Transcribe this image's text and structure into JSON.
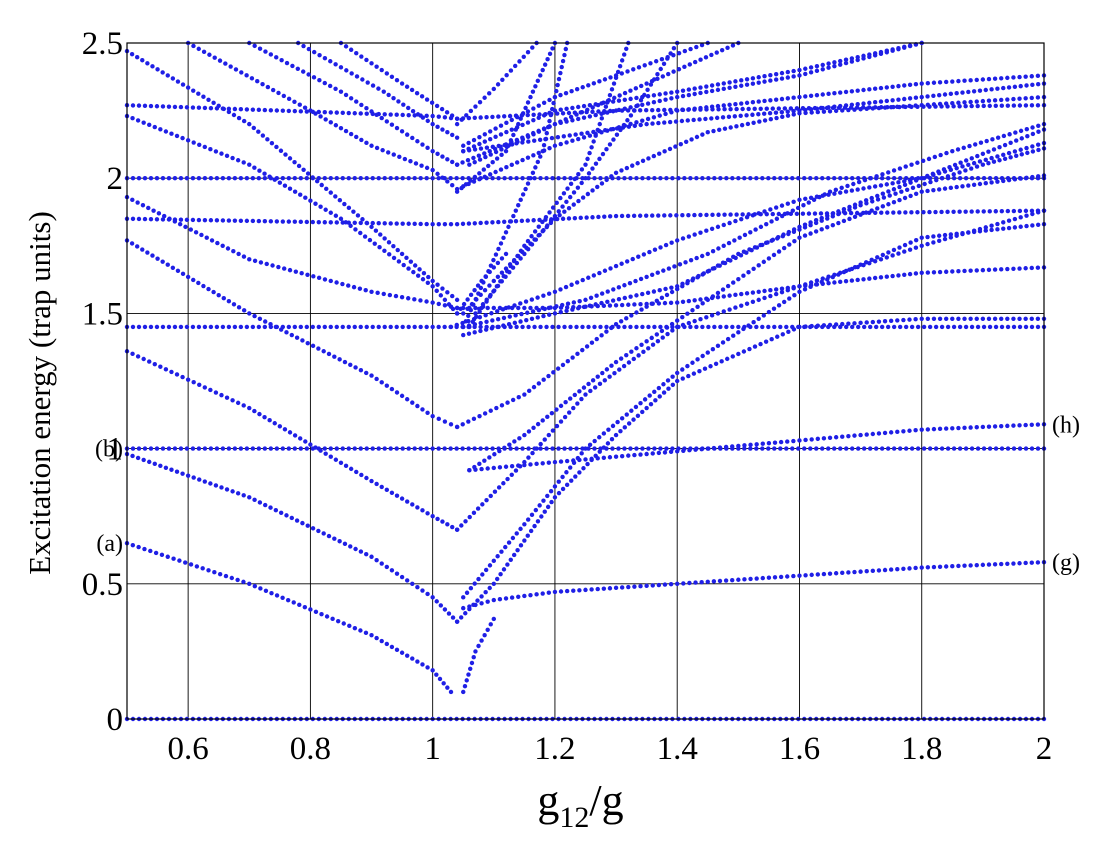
{
  "chart_data": {
    "type": "scatter",
    "xlabel": {
      "main": "g",
      "sub": "12",
      "rest": "/g"
    },
    "ylabel": "Excitation energy (trap units)",
    "xlim": [
      0.5,
      2.0
    ],
    "ylim": [
      0,
      2.5
    ],
    "x_ticks": [
      0.6,
      0.8,
      1,
      1.2,
      1.4,
      1.6,
      1.8,
      2
    ],
    "x_tick_labels": [
      "0.6",
      "0.8",
      "1",
      "1.2",
      "1.4",
      "1.6",
      "1.8",
      "2"
    ],
    "y_ticks": [
      0,
      0.5,
      1,
      1.5,
      2,
      2.5
    ],
    "y_tick_labels": [
      "0",
      "0.5",
      "1",
      "1.5",
      "2",
      "2.5"
    ],
    "grid": true,
    "marker_color": "#1f1fe6",
    "annotations": [
      {
        "text": "(a)",
        "x": 0.5,
        "y": 0.65,
        "side": "left"
      },
      {
        "text": "(b)",
        "x": 0.5,
        "y": 1.0,
        "side": "left"
      },
      {
        "text": "(g)",
        "x": 2.0,
        "y": 0.58,
        "side": "right"
      },
      {
        "text": "(h)",
        "x": 2.0,
        "y": 1.09,
        "side": "right"
      }
    ],
    "series": [
      {
        "points": [
          [
            0.5,
            0.0
          ],
          [
            2.0,
            0.0
          ]
        ]
      },
      {
        "points": [
          [
            0.5,
            1.0
          ],
          [
            2.0,
            1.0
          ]
        ]
      },
      {
        "points": [
          [
            0.5,
            1.45
          ],
          [
            2.0,
            1.45
          ]
        ]
      },
      {
        "points": [
          [
            0.5,
            2.0
          ],
          [
            2.0,
            2.0
          ]
        ]
      },
      {
        "points": [
          [
            0.5,
            1.85
          ],
          [
            1.0,
            1.83
          ],
          [
            1.04,
            1.83
          ],
          [
            1.3,
            1.86
          ],
          [
            2.0,
            1.88
          ]
        ]
      },
      {
        "points": [
          [
            0.5,
            2.27
          ],
          [
            1.0,
            2.23
          ],
          [
            1.04,
            2.22
          ],
          [
            1.3,
            2.25
          ],
          [
            2.0,
            2.27
          ]
        ]
      },
      {
        "points": [
          [
            0.5,
            0.65
          ],
          [
            0.7,
            0.5
          ],
          [
            0.9,
            0.31
          ],
          [
            1.0,
            0.18
          ],
          [
            1.03,
            0.1
          ]
        ]
      },
      {
        "points": [
          [
            1.05,
            0.1
          ],
          [
            1.07,
            0.25
          ],
          [
            1.1,
            0.37
          ]
        ]
      },
      {
        "points": [
          [
            1.05,
            0.41
          ],
          [
            1.1,
            0.44
          ],
          [
            1.2,
            0.47
          ],
          [
            1.4,
            0.5
          ],
          [
            1.6,
            0.53
          ],
          [
            1.8,
            0.56
          ],
          [
            2.0,
            0.58
          ]
        ]
      },
      {
        "points": [
          [
            0.5,
            0.98
          ],
          [
            0.7,
            0.82
          ],
          [
            0.9,
            0.6
          ],
          [
            1.0,
            0.45
          ],
          [
            1.04,
            0.36
          ]
        ]
      },
      {
        "points": [
          [
            1.04,
            0.36
          ],
          [
            1.1,
            0.5
          ],
          [
            1.2,
            0.82
          ],
          [
            1.3,
            1.05
          ],
          [
            1.4,
            1.25
          ],
          [
            1.6,
            1.45
          ],
          [
            1.8,
            1.48
          ],
          [
            2.0,
            1.48
          ]
        ]
      },
      {
        "points": [
          [
            0.5,
            1.36
          ],
          [
            0.7,
            1.15
          ],
          [
            0.9,
            0.88
          ],
          [
            1.0,
            0.75
          ],
          [
            1.04,
            0.7
          ]
        ]
      },
      {
        "points": [
          [
            1.04,
            0.7
          ],
          [
            1.15,
            0.95
          ],
          [
            1.25,
            1.2
          ],
          [
            1.4,
            1.45
          ],
          [
            1.6,
            1.6
          ],
          [
            1.8,
            1.65
          ],
          [
            2.0,
            1.67
          ]
        ]
      },
      {
        "points": [
          [
            1.05,
            0.45
          ],
          [
            1.15,
            0.72
          ],
          [
            1.25,
            1.0
          ],
          [
            1.4,
            1.28
          ],
          [
            1.6,
            1.58
          ],
          [
            1.8,
            1.78
          ],
          [
            2.0,
            1.83
          ]
        ]
      },
      {
        "points": [
          [
            1.06,
            0.92
          ],
          [
            1.2,
            0.95
          ],
          [
            1.4,
            0.99
          ],
          [
            1.6,
            1.03
          ],
          [
            1.8,
            1.07
          ],
          [
            2.0,
            1.09
          ]
        ]
      },
      {
        "points": [
          [
            1.06,
            0.92
          ],
          [
            1.15,
            1.05
          ],
          [
            1.3,
            1.32
          ],
          [
            1.45,
            1.55
          ],
          [
            1.6,
            1.78
          ],
          [
            1.8,
            1.95
          ],
          [
            2.0,
            2.01
          ]
        ]
      },
      {
        "points": [
          [
            0.5,
            1.77
          ],
          [
            0.7,
            1.5
          ],
          [
            0.9,
            1.27
          ],
          [
            1.0,
            1.12
          ],
          [
            1.04,
            1.08
          ]
        ]
      },
      {
        "points": [
          [
            1.04,
            1.08
          ],
          [
            1.15,
            1.2
          ],
          [
            1.3,
            1.46
          ],
          [
            1.5,
            1.72
          ],
          [
            1.7,
            1.9
          ],
          [
            1.9,
            2.05
          ],
          [
            2.0,
            2.11
          ]
        ]
      },
      {
        "points": [
          [
            0.5,
            1.93
          ],
          [
            0.7,
            1.7
          ],
          [
            0.9,
            1.58
          ],
          [
            1.0,
            1.54
          ],
          [
            1.04,
            1.52
          ]
        ]
      },
      {
        "points": [
          [
            1.04,
            1.52
          ],
          [
            1.2,
            1.52
          ],
          [
            1.4,
            1.54
          ],
          [
            1.6,
            1.6
          ],
          [
            1.8,
            1.75
          ],
          [
            2.0,
            1.88
          ]
        ]
      },
      {
        "points": [
          [
            1.05,
            1.42
          ],
          [
            1.2,
            1.5
          ],
          [
            1.4,
            1.6
          ],
          [
            1.6,
            1.82
          ],
          [
            1.8,
            2.0
          ],
          [
            2.0,
            2.18
          ]
        ]
      },
      {
        "points": [
          [
            1.05,
            1.45
          ],
          [
            1.25,
            1.55
          ],
          [
            1.45,
            1.72
          ],
          [
            1.65,
            1.95
          ],
          [
            1.85,
            2.1
          ],
          [
            2.0,
            2.2
          ]
        ]
      },
      {
        "points": [
          [
            1.03,
            1.45
          ],
          [
            1.2,
            1.58
          ],
          [
            1.4,
            1.77
          ],
          [
            1.6,
            1.92
          ],
          [
            1.8,
            2.0
          ],
          [
            2.0,
            2.13
          ]
        ]
      },
      {
        "points": [
          [
            0.5,
            2.47
          ],
          [
            0.7,
            2.2
          ],
          [
            0.9,
            1.82
          ],
          [
            1.0,
            1.62
          ],
          [
            1.04,
            1.55
          ]
        ]
      },
      {
        "points": [
          [
            0.5,
            2.23
          ],
          [
            0.7,
            2.05
          ],
          [
            0.85,
            1.85
          ],
          [
            1.0,
            1.6
          ],
          [
            1.04,
            1.5
          ]
        ]
      },
      {
        "points": [
          [
            1.05,
            1.5
          ],
          [
            1.1,
            1.62
          ],
          [
            1.2,
            1.85
          ],
          [
            1.3,
            2.02
          ],
          [
            1.45,
            2.17
          ],
          [
            1.6,
            2.24
          ],
          [
            1.8,
            2.27
          ],
          [
            2.0,
            2.3
          ]
        ]
      },
      {
        "points": [
          [
            0.6,
            2.5
          ],
          [
            0.8,
            2.25
          ],
          [
            0.9,
            2.12
          ],
          [
            1.0,
            2.03
          ],
          [
            1.04,
            1.96
          ]
        ]
      },
      {
        "points": [
          [
            1.05,
            1.97
          ],
          [
            1.2,
            2.12
          ],
          [
            1.4,
            2.25
          ],
          [
            1.6,
            2.3
          ],
          [
            1.8,
            2.35
          ],
          [
            2.0,
            2.38
          ]
        ]
      },
      {
        "points": [
          [
            0.7,
            2.5
          ],
          [
            0.85,
            2.32
          ],
          [
            1.0,
            2.1
          ],
          [
            1.04,
            2.05
          ]
        ]
      },
      {
        "points": [
          [
            1.04,
            2.05
          ],
          [
            1.2,
            2.2
          ],
          [
            1.4,
            2.3
          ],
          [
            1.6,
            2.38
          ],
          [
            1.8,
            2.5
          ]
        ]
      },
      {
        "points": [
          [
            1.06,
            2.05
          ],
          [
            1.2,
            2.2
          ],
          [
            1.35,
            2.35
          ],
          [
            1.5,
            2.5
          ]
        ]
      },
      {
        "points": [
          [
            1.05,
            2.1
          ],
          [
            1.2,
            2.25
          ],
          [
            1.4,
            2.32
          ],
          [
            1.6,
            2.4
          ],
          [
            1.8,
            2.5
          ]
        ]
      },
      {
        "points": [
          [
            1.05,
            2.12
          ],
          [
            1.2,
            2.3
          ],
          [
            1.3,
            2.38
          ],
          [
            1.45,
            2.5
          ]
        ]
      },
      {
        "points": [
          [
            1.05,
            2.1
          ],
          [
            1.35,
            2.2
          ],
          [
            1.6,
            2.25
          ],
          [
            1.8,
            2.3
          ],
          [
            2.0,
            2.35
          ]
        ]
      },
      {
        "points": [
          [
            0.78,
            2.5
          ],
          [
            0.92,
            2.32
          ],
          [
            1.0,
            2.2
          ],
          [
            1.04,
            2.15
          ]
        ]
      },
      {
        "points": [
          [
            0.85,
            2.5
          ],
          [
            0.95,
            2.35
          ],
          [
            1.04,
            2.22
          ]
        ]
      },
      {
        "points": [
          [
            1.04,
            2.2
          ],
          [
            1.1,
            2.33
          ],
          [
            1.17,
            2.5
          ]
        ]
      },
      {
        "points": [
          [
            1.04,
            1.95
          ],
          [
            1.12,
            2.1
          ],
          [
            1.2,
            2.5
          ]
        ]
      },
      {
        "points": [
          [
            1.05,
            1.45
          ],
          [
            1.12,
            1.8
          ],
          [
            1.18,
            2.1
          ],
          [
            1.22,
            2.5
          ]
        ]
      },
      {
        "points": [
          [
            1.06,
            1.45
          ],
          [
            1.15,
            1.75
          ],
          [
            1.25,
            2.05
          ],
          [
            1.32,
            2.5
          ]
        ]
      },
      {
        "points": [
          [
            1.07,
            1.5
          ],
          [
            1.15,
            1.72
          ],
          [
            1.25,
            2.0
          ],
          [
            1.33,
            2.25
          ],
          [
            1.4,
            2.5
          ]
        ]
      },
      {
        "points": [
          [
            1.04,
            1.5
          ],
          [
            1.08,
            1.62
          ],
          [
            1.12,
            1.72
          ]
        ]
      }
    ]
  }
}
